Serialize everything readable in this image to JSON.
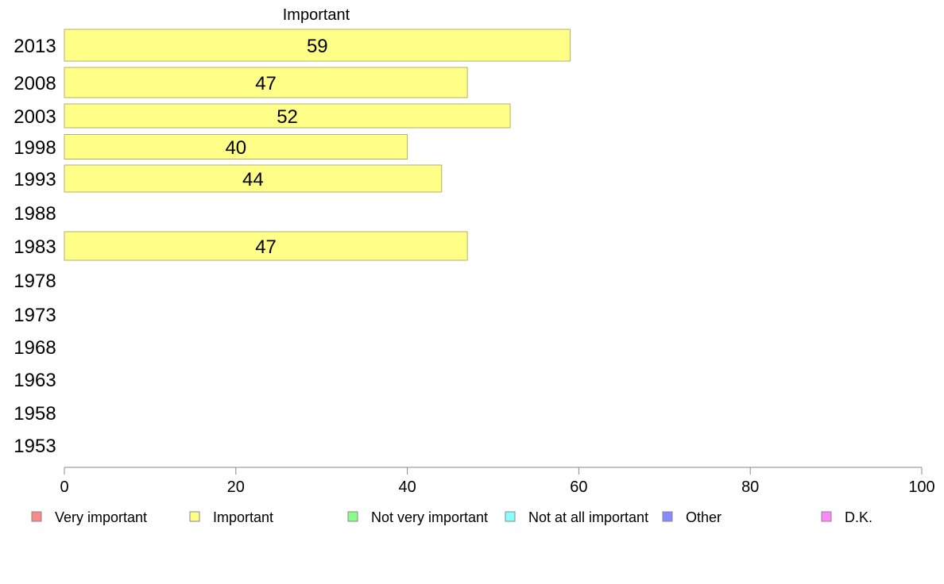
{
  "chart_data": {
    "type": "bar",
    "orientation": "horizontal",
    "title": "Important",
    "categories": [
      "2013",
      "2008",
      "2003",
      "1998",
      "1993",
      "1988",
      "1983",
      "1978",
      "1973",
      "1968",
      "1963",
      "1958",
      "1953"
    ],
    "series": [
      {
        "name": "Important",
        "color": "#ffff88",
        "values": [
          59,
          47,
          52,
          40,
          44,
          null,
          47,
          null,
          null,
          null,
          null,
          null,
          null
        ]
      }
    ],
    "xlim": [
      0,
      100
    ],
    "xticks": [
      "0",
      "20",
      "40",
      "60",
      "80",
      "100"
    ],
    "legend": {
      "position": "bottom",
      "items": [
        {
          "label": "Very important",
          "color": "#ff8888"
        },
        {
          "label": "Important",
          "color": "#ffff88"
        },
        {
          "label": "Not very important",
          "color": "#88ff88"
        },
        {
          "label": "Not at all important",
          "color": "#88ffff"
        },
        {
          "label": "Other",
          "color": "#8888ff"
        },
        {
          "label": "D.K.",
          "color": "#ff88ff"
        }
      ]
    },
    "bar_border_color": "#b0b070",
    "axis_color": "#888888"
  }
}
